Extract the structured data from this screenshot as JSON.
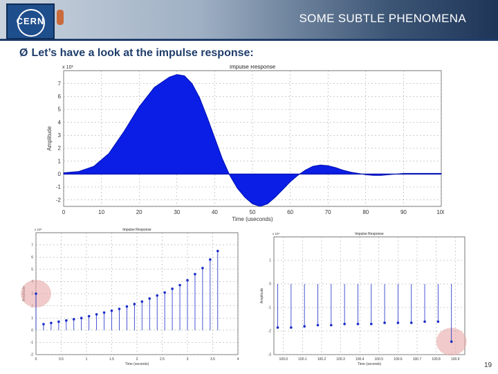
{
  "header": {
    "title": "SOME SUBTLE PHENOMENA",
    "logo_text": "CERN",
    "colors": {
      "bar": "#2f4f7a",
      "text": "#ffffff"
    }
  },
  "bullet": {
    "arrow": "Ø",
    "text": "Let’s have a look at the impulse response:"
  },
  "page_number": "19",
  "chart_data": [
    {
      "type": "area",
      "title": "Impulse Response",
      "exponent": "x 10¹",
      "xlabel": "Time (useconds)",
      "ylabel": "Amplitude",
      "xlim": [
        0,
        100
      ],
      "ylim": [
        -2.5,
        8
      ],
      "xticks": [
        0,
        10,
        20,
        30,
        40,
        50,
        60,
        70,
        80,
        90,
        100
      ],
      "xtick_labels": [
        "0",
        "10",
        "20",
        "30",
        "40",
        "50",
        "60",
        "70",
        "80",
        "90",
        "100"
      ],
      "yticks": [
        -2,
        -1,
        0,
        1,
        2,
        3,
        4,
        5,
        6,
        7
      ],
      "grid": true,
      "color": "#0a1ee6",
      "x": [
        0,
        4,
        8,
        12,
        16,
        20,
        24,
        28,
        30,
        32,
        34,
        36,
        38,
        40,
        42,
        44,
        46,
        48,
        50,
        52,
        54,
        56,
        58,
        60,
        62,
        64,
        66,
        68,
        70,
        72,
        74,
        76,
        78,
        80,
        82,
        84,
        86,
        88,
        90,
        94,
        100
      ],
      "y": [
        0.1,
        0.2,
        0.6,
        1.6,
        3.3,
        5.2,
        6.7,
        7.5,
        7.7,
        7.6,
        7.0,
        5.9,
        4.4,
        2.8,
        1.2,
        -0.1,
        -1.1,
        -1.8,
        -2.3,
        -2.5,
        -2.3,
        -1.8,
        -1.2,
        -0.6,
        -0.1,
        0.3,
        0.6,
        0.7,
        0.65,
        0.5,
        0.3,
        0.15,
        0.05,
        -0.05,
        -0.1,
        -0.1,
        -0.05,
        0.0,
        0.05,
        0.05,
        0.05
      ]
    },
    {
      "type": "scatter",
      "title": "Impulse Response",
      "exponent": "x 10³",
      "xlabel": "Time (seconds)",
      "ylabel": "Amplitude",
      "xlim": [
        0,
        4
      ],
      "ylim": [
        -2,
        8
      ],
      "xticks": [
        0,
        0.5,
        1,
        1.5,
        2,
        2.5,
        3,
        3.5,
        4
      ],
      "xtick_labels": [
        "0",
        "0.5",
        "1",
        "1.5",
        "2",
        "2.5",
        "3",
        "3.5",
        "4"
      ],
      "yticks": [
        -2,
        -1,
        0,
        1,
        2,
        3,
        4,
        5,
        6,
        7
      ],
      "grid": true,
      "stem": true,
      "x": [
        0,
        0.15,
        0.3,
        0.45,
        0.6,
        0.75,
        0.9,
        1.05,
        1.2,
        1.35,
        1.5,
        1.65,
        1.8,
        1.95,
        2.1,
        2.25,
        2.4,
        2.55,
        2.7,
        2.85,
        3.0,
        3.15,
        3.3,
        3.45,
        3.6
      ],
      "y": [
        3.0,
        0.5,
        0.6,
        0.7,
        0.8,
        0.9,
        1.0,
        1.15,
        1.3,
        1.45,
        1.6,
        1.75,
        1.95,
        2.15,
        2.35,
        2.6,
        2.85,
        3.1,
        3.4,
        3.7,
        4.1,
        4.6,
        5.1,
        5.8,
        6.5
      ],
      "highlight_x": 0
    },
    {
      "type": "scatter",
      "title": "Impulse Response",
      "exponent": "x 10¹",
      "xlabel": "Time (seconds)",
      "ylabel": "Amplitude",
      "xlim": [
        0,
        10
      ],
      "ylim": [
        -3,
        2
      ],
      "xticks": [
        0.5,
        1.5,
        2.5,
        3.5,
        4.5,
        5.5,
        6.5,
        7.5,
        8.5,
        9.5
      ],
      "xtick_labels": [
        "100.0",
        "100.1",
        "100.2",
        "100.3",
        "100.4",
        "100.5",
        "100.6",
        "100.7",
        "100.8",
        "100.9"
      ],
      "yticks": [
        -3,
        -2,
        -1,
        0,
        1
      ],
      "grid": true,
      "stem": true,
      "x": [
        0.2,
        0.9,
        1.6,
        2.3,
        3.0,
        3.7,
        4.4,
        5.1,
        5.8,
        6.5,
        7.2,
        7.9,
        8.6,
        9.3
      ],
      "y": [
        -1.85,
        -1.85,
        -1.8,
        -1.75,
        -1.75,
        -1.7,
        -1.7,
        -1.7,
        -1.65,
        -1.65,
        -1.65,
        -1.6,
        -1.6,
        -2.45
      ],
      "highlight_x": 9.3
    }
  ]
}
